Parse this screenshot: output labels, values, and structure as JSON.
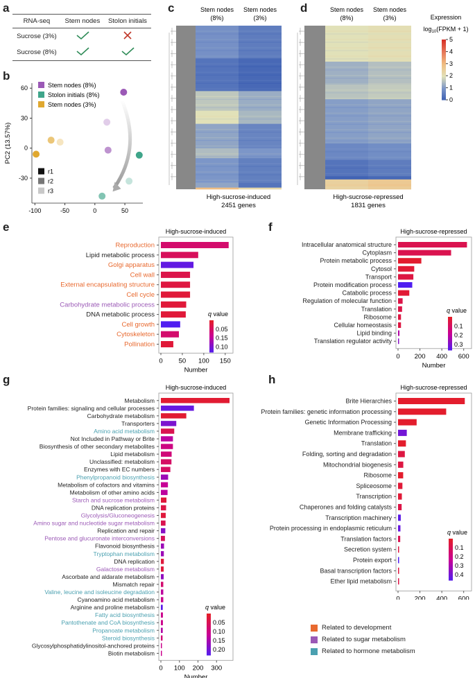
{
  "panels": {
    "a": "a",
    "b": "b",
    "c": "c",
    "d": "d",
    "e": "e",
    "f": "f",
    "g": "g",
    "h": "h"
  },
  "table_a": {
    "headers": [
      "RNA-seq",
      "Stem nodes",
      "Stolon initials"
    ],
    "rows": [
      {
        "label": "Sucrose (3%)",
        "stem_nodes": "check",
        "stolon_initials": "cross"
      },
      {
        "label": "Sucrose (8%)",
        "stem_nodes": "check",
        "stolon_initials": "check"
      }
    ],
    "colors": {
      "check": "#2e8b57",
      "cross": "#c0392b"
    }
  },
  "chart_data": [
    {
      "id": "b",
      "type": "scatter",
      "title": "",
      "xlabel": "PC1 (56.62%)",
      "ylabel": "PC2 (13.57%)",
      "xlim": [
        -105,
        80
      ],
      "ylim": [
        -55,
        65
      ],
      "xticks": [
        -100,
        -50,
        0,
        50
      ],
      "yticks": [
        -30,
        0,
        30,
        60
      ],
      "legend_groups": [
        {
          "name": "Stem nodes (8%)",
          "color": "#9b59b6"
        },
        {
          "name": "Stolon initials (8%)",
          "color": "#3fa58a"
        },
        {
          "name": "Stem nodes (3%)",
          "color": "#e0a830"
        }
      ],
      "legend_reps": [
        {
          "name": "r1",
          "color": "#111111"
        },
        {
          "name": "r2",
          "color": "#777777"
        },
        {
          "name": "r3",
          "color": "#c8c8c8"
        }
      ],
      "points": [
        {
          "group": 0,
          "rep": "r1",
          "x": 48,
          "y": 56
        },
        {
          "group": 0,
          "rep": "r2",
          "x": 22,
          "y": -2
        },
        {
          "group": 0,
          "rep": "r3",
          "x": 20,
          "y": 26
        },
        {
          "group": 1,
          "rep": "r1",
          "x": 74,
          "y": -7
        },
        {
          "group": 1,
          "rep": "r2",
          "x": 12,
          "y": -48
        },
        {
          "group": 1,
          "rep": "r3",
          "x": 57,
          "y": -33
        },
        {
          "group": 2,
          "rep": "r1",
          "x": -98,
          "y": -6
        },
        {
          "group": 2,
          "rep": "r2",
          "x": -73,
          "y": 8
        },
        {
          "group": 2,
          "rep": "r3",
          "x": -58,
          "y": 6
        }
      ]
    },
    {
      "id": "c",
      "type": "heatmap",
      "columns": [
        "Stem nodes\n(8%)",
        "Stem nodes\n(3%)"
      ],
      "column_labels": [
        [
          "Stem nodes",
          "(8%)"
        ],
        [
          "Stem nodes",
          "(3%)"
        ]
      ],
      "caption": [
        "High-sucrose-induced",
        "2451 genes"
      ],
      "blocks": [
        {
          "frac": 0.2,
          "values": [
            0.9,
            0.55
          ]
        },
        {
          "frac": 0.2,
          "values": [
            0.4,
            0.2
          ]
        },
        {
          "frac": 0.12,
          "values": [
            1.65,
            1.3
          ]
        },
        {
          "frac": 0.08,
          "values": [
            2.0,
            1.45
          ]
        },
        {
          "frac": 0.15,
          "values": [
            1.2,
            0.7
          ]
        },
        {
          "frac": 0.06,
          "values": [
            1.5,
            1.0
          ]
        },
        {
          "frac": 0.15,
          "values": [
            1.0,
            0.6
          ]
        },
        {
          "frac": 0.03,
          "values": [
            1.2,
            0.4
          ]
        },
        {
          "frac": 0.01,
          "values": [
            3.0,
            2.3
          ]
        }
      ]
    },
    {
      "id": "d",
      "type": "heatmap",
      "column_labels": [
        [
          "Stem nodes",
          "(8%)"
        ],
        [
          "Stem nodes",
          "(3%)"
        ]
      ],
      "caption": [
        "High-sucrose-repressed",
        "1831 genes"
      ],
      "colorbar": {
        "title": [
          "Expression",
          "log10(FPKM + 1)"
        ],
        "ticks": [
          0,
          1,
          2,
          3,
          4,
          5
        ],
        "range": [
          0,
          5
        ]
      },
      "blocks": [
        {
          "frac": 0.22,
          "values": [
            2.0,
            2.1
          ]
        },
        {
          "frac": 0.14,
          "values": [
            1.35,
            1.55
          ]
        },
        {
          "frac": 0.09,
          "values": [
            1.6,
            1.7
          ]
        },
        {
          "frac": 0.27,
          "values": [
            1.1,
            1.2
          ]
        },
        {
          "frac": 0.1,
          "values": [
            0.75,
            0.85
          ]
        },
        {
          "frac": 0.1,
          "values": [
            0.4,
            0.55
          ]
        },
        {
          "frac": 0.02,
          "values": [
            0.1,
            0.2
          ]
        },
        {
          "frac": 0.06,
          "values": [
            2.5,
            2.7
          ]
        }
      ]
    },
    {
      "id": "e",
      "type": "bar",
      "orientation": "horizontal",
      "title": "High-sucrose-induced",
      "xlabel": "Number",
      "xlim": [
        0,
        160
      ],
      "xticks": [
        0,
        50,
        100,
        150
      ],
      "colorbar": {
        "title": "q value",
        "ticks": [
          "0.05",
          "0.15",
          "0.10"
        ]
      },
      "categories": [
        "Reproduction",
        "Lipid metabolic process",
        "Golgi apparatus",
        "Cell wall",
        "External encapsulating structure",
        "Cell cycle",
        "Carbohydrate metabolic process",
        "DNA metabolic process",
        "Cell growth",
        "Cytoskeleton",
        "Pollination"
      ],
      "label_class": [
        "dev",
        "none",
        "dev",
        "dev",
        "dev",
        "dev",
        "sugar",
        "none",
        "dev",
        "dev",
        "dev"
      ],
      "values": [
        158,
        87,
        76,
        68,
        68,
        68,
        59,
        58,
        45,
        42,
        29
      ],
      "qvalues": [
        0.04,
        0.03,
        0.12,
        0.02,
        0.015,
        0.01,
        0.01,
        0.01,
        0.13,
        0.04,
        0.01
      ],
      "qrange": [
        0.0,
        0.13
      ]
    },
    {
      "id": "f",
      "type": "bar",
      "orientation": "horizontal",
      "title": "High-sucrose-repressed",
      "xlabel": "Number",
      "xlim": [
        0,
        640
      ],
      "xticks": [
        0,
        200,
        400,
        600
      ],
      "colorbar": {
        "title": "q value",
        "ticks": [
          "0.1",
          "0.2",
          "0.3"
        ]
      },
      "categories": [
        "Intracellular anatomical structure",
        "Cytoplasm",
        "Protein metabolic process",
        "Cytosol",
        "Transport",
        "Protein modification process",
        "Catabolic process",
        "Regulation of molecular function",
        "Translation",
        "Ribosome",
        "Cellular homeostasis",
        "Lipid binding",
        "Translation regulator activity"
      ],
      "label_class": [
        "none",
        "none",
        "none",
        "none",
        "none",
        "none",
        "none",
        "none",
        "none",
        "none",
        "none",
        "none",
        "none"
      ],
      "values": [
        630,
        485,
        213,
        148,
        140,
        130,
        103,
        42,
        37,
        27,
        27,
        13,
        8
      ],
      "qvalues": [
        0.06,
        0.06,
        0.01,
        0.02,
        0.04,
        0.34,
        0.02,
        0.05,
        0.05,
        0.04,
        0.04,
        0.2,
        0.26
      ],
      "qrange": [
        0.0,
        0.34
      ]
    },
    {
      "id": "g",
      "type": "bar",
      "orientation": "horizontal",
      "title": "High-sucrose-induced",
      "xlabel": "Number",
      "xlim": [
        0,
        370
      ],
      "xticks": [
        0,
        100,
        200,
        300
      ],
      "colorbar": {
        "title": "q value",
        "ticks": [
          "0.05",
          "0.10",
          "0.15",
          "0.20"
        ]
      },
      "categories": [
        "Metabolism",
        "Protein families: signaling and cellular processes",
        "Carbohydrate metabolism",
        "Transporters",
        "Amino acid metabolism",
        "Not Included in Pathway or Brite",
        "Biosynthesis of other secondary metabolites",
        "Lipid metabolism",
        "Unclassified: metabolism",
        "Enzymes with EC numbers",
        "Phenylpropanoid biosynthesis",
        "Metabolism of cofactors and vitamins",
        "Metabolism of other amino acids",
        "Starch and sucrose metabolism",
        "DNA replication proteins",
        "Glycolysis/Gluconeogenesis",
        "Amino sugar and nucleotide sugar metabolism",
        "Replication and repair",
        "Pentose and glucuronate interconversions",
        "Flavonoid biosynthesis",
        "Tryptophan metabolism",
        "DNA replication",
        "Galactose metabolism",
        "Ascorbate and aldarate metabolism",
        "Mismatch repair",
        "Valine, leucine and isoleucine degradation",
        "Cyanoamino acid metabolism",
        "Arginine and proline metabolism",
        "Fatty acid biosynthesis",
        "Pantothenate and CoA biosynthesis",
        "Propanoate metabolism",
        "Steroid biosynthesis",
        "Glycosylphosphatidylinositol-anchored proteins",
        "Biotin metabolism"
      ],
      "label_class": [
        "none",
        "none",
        "none",
        "none",
        "hormone",
        "none",
        "none",
        "none",
        "none",
        "none",
        "hormone",
        "none",
        "none",
        "sugar",
        "none",
        "sugar",
        "sugar",
        "none",
        "sugar",
        "none",
        "hormone",
        "none",
        "sugar",
        "none",
        "none",
        "hormone",
        "none",
        "none",
        "hormone",
        "hormone",
        "hormone",
        "hormone",
        "none",
        "none"
      ],
      "values": [
        370,
        178,
        137,
        83,
        72,
        65,
        65,
        58,
        57,
        51,
        39,
        38,
        36,
        30,
        28,
        26,
        25,
        24,
        22,
        17,
        16,
        16,
        15,
        15,
        13,
        13,
        13,
        10,
        11,
        11,
        10,
        9,
        4,
        4
      ],
      "qvalues": [
        0.01,
        0.2,
        0.01,
        0.18,
        0.04,
        0.12,
        0.09,
        0.08,
        0.06,
        0.06,
        0.15,
        0.11,
        0.12,
        0.02,
        0.03,
        0.02,
        0.04,
        0.17,
        0.05,
        0.15,
        0.15,
        0.02,
        0.02,
        0.16,
        0.07,
        0.12,
        0.1,
        0.21,
        0.1,
        0.1,
        0.13,
        0.08,
        0.1,
        0.1
      ],
      "qrange": [
        0.0,
        0.22
      ]
    },
    {
      "id": "h",
      "type": "bar",
      "orientation": "horizontal",
      "title": "High-sucrose-repressed",
      "xlabel": "Number",
      "xlim": [
        0,
        640
      ],
      "xticks": [
        0,
        200,
        400,
        600
      ],
      "colorbar": {
        "title": "q value",
        "ticks": [
          "0.1",
          "0.2",
          "0.3",
          "0.4"
        ]
      },
      "categories": [
        "Brite Hierarchies",
        "Protein families: genetic information processing",
        "Genetic Information Processing",
        "Membrane trafficking",
        "Translation",
        "Folding, sorting and degradation",
        "Mitochondrial biogenesis",
        "Ribosome",
        "Spliceosome",
        "Transcription",
        "Chaperones and folding catalysts",
        "Transcription machinery",
        "Protein processing in endoplasmic reticulum",
        "Translation factors",
        "Secretion system",
        "Protein export",
        "Basal transcription factors",
        "Ether lipid metabolism"
      ],
      "label_class": [
        "none",
        "none",
        "none",
        "none",
        "none",
        "none",
        "none",
        "none",
        "none",
        "none",
        "none",
        "none",
        "none",
        "none",
        "none",
        "none",
        "none",
        "none"
      ],
      "values": [
        610,
        440,
        170,
        80,
        72,
        62,
        48,
        47,
        40,
        35,
        33,
        25,
        22,
        20,
        8,
        7,
        7,
        5
      ],
      "qvalues": [
        0.01,
        0.01,
        0.01,
        0.36,
        0.01,
        0.05,
        0.05,
        0.01,
        0.03,
        0.03,
        0.06,
        0.4,
        0.38,
        0.08,
        0.05,
        0.42,
        0.05,
        0.06
      ],
      "qrange": [
        0.0,
        0.42
      ]
    }
  ],
  "category_legend": [
    {
      "key": "dev",
      "label": "Related to development",
      "color": "#e8692f"
    },
    {
      "key": "sugar",
      "label": "Related to sugar metabolism",
      "color": "#9b59b6"
    },
    {
      "key": "hormone",
      "label": "Related to hormone metabolism",
      "color": "#4aa0b0"
    }
  ]
}
